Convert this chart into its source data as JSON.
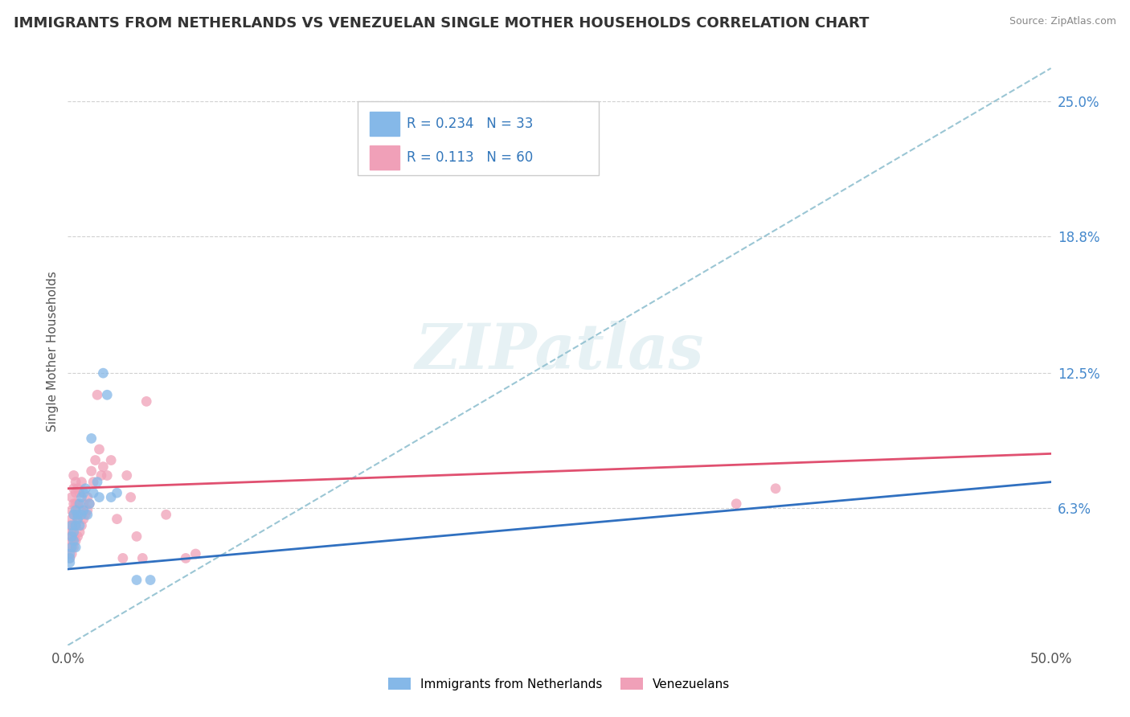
{
  "title": "IMMIGRANTS FROM NETHERLANDS VS VENEZUELAN SINGLE MOTHER HOUSEHOLDS CORRELATION CHART",
  "source": "Source: ZipAtlas.com",
  "ylabel": "Single Mother Households",
  "xlim": [
    0.0,
    0.5
  ],
  "ylim": [
    -0.01,
    0.275
  ],
  "plot_ylim": [
    0.0,
    0.27
  ],
  "right_yticks": [
    0.063,
    0.125,
    0.188,
    0.25
  ],
  "right_yticklabels": [
    "6.3%",
    "12.5%",
    "18.8%",
    "25.0%"
  ],
  "xtick_positions": [
    0.0,
    0.5
  ],
  "xtick_labels": [
    "0.0%",
    "50.0%"
  ],
  "grid_yticks": [
    0.063,
    0.125,
    0.188,
    0.25
  ],
  "watermark": "ZIPatlas",
  "legend_entries": [
    {
      "label": "Immigrants from Netherlands",
      "R": "0.234",
      "N": "33",
      "color": "#a8c8f0"
    },
    {
      "label": "Venezuelans",
      "R": "0.113",
      "N": "60",
      "color": "#f5b8c4"
    }
  ],
  "netherlands_color": "#85b8e8",
  "venezuelan_color": "#f0a0b8",
  "netherlands_line_color": "#3070c0",
  "venezuelan_line_color": "#e05070",
  "ref_line_color": "#90c0d0",
  "background_color": "#ffffff",
  "grid_color": "#cccccc",
  "nl_trend_x0": 0.0,
  "nl_trend_y0": 0.035,
  "nl_trend_x1": 0.5,
  "nl_trend_y1": 0.075,
  "vz_trend_x0": 0.0,
  "vz_trend_y0": 0.072,
  "vz_trend_x1": 0.5,
  "vz_trend_y1": 0.088,
  "ref_trend_x0": 0.0,
  "ref_trend_y0": 0.0,
  "ref_trend_x1": 0.5,
  "ref_trend_y1": 0.265,
  "netherlands_scatter": [
    [
      0.001,
      0.04
    ],
    [
      0.001,
      0.042
    ],
    [
      0.001,
      0.038
    ],
    [
      0.002,
      0.05
    ],
    [
      0.002,
      0.055
    ],
    [
      0.002,
      0.045
    ],
    [
      0.003,
      0.052
    ],
    [
      0.003,
      0.048
    ],
    [
      0.003,
      0.06
    ],
    [
      0.004,
      0.055
    ],
    [
      0.004,
      0.062
    ],
    [
      0.004,
      0.045
    ],
    [
      0.005,
      0.06
    ],
    [
      0.005,
      0.058
    ],
    [
      0.006,
      0.065
    ],
    [
      0.006,
      0.055
    ],
    [
      0.007,
      0.068
    ],
    [
      0.007,
      0.06
    ],
    [
      0.008,
      0.07
    ],
    [
      0.008,
      0.062
    ],
    [
      0.009,
      0.072
    ],
    [
      0.01,
      0.06
    ],
    [
      0.011,
      0.065
    ],
    [
      0.012,
      0.095
    ],
    [
      0.013,
      0.07
    ],
    [
      0.015,
      0.075
    ],
    [
      0.016,
      0.068
    ],
    [
      0.018,
      0.125
    ],
    [
      0.02,
      0.115
    ],
    [
      0.022,
      0.068
    ],
    [
      0.025,
      0.07
    ],
    [
      0.035,
      0.03
    ],
    [
      0.042,
      0.03
    ]
  ],
  "venezuelan_scatter": [
    [
      0.001,
      0.04
    ],
    [
      0.001,
      0.045
    ],
    [
      0.001,
      0.05
    ],
    [
      0.001,
      0.055
    ],
    [
      0.002,
      0.042
    ],
    [
      0.002,
      0.048
    ],
    [
      0.002,
      0.052
    ],
    [
      0.002,
      0.058
    ],
    [
      0.002,
      0.062
    ],
    [
      0.002,
      0.068
    ],
    [
      0.003,
      0.045
    ],
    [
      0.003,
      0.05
    ],
    [
      0.003,
      0.055
    ],
    [
      0.003,
      0.06
    ],
    [
      0.003,
      0.065
    ],
    [
      0.003,
      0.072
    ],
    [
      0.003,
      0.078
    ],
    [
      0.004,
      0.048
    ],
    [
      0.004,
      0.055
    ],
    [
      0.004,
      0.06
    ],
    [
      0.004,
      0.065
    ],
    [
      0.004,
      0.07
    ],
    [
      0.004,
      0.075
    ],
    [
      0.005,
      0.05
    ],
    [
      0.005,
      0.058
    ],
    [
      0.005,
      0.065
    ],
    [
      0.005,
      0.072
    ],
    [
      0.006,
      0.052
    ],
    [
      0.006,
      0.06
    ],
    [
      0.006,
      0.07
    ],
    [
      0.007,
      0.055
    ],
    [
      0.007,
      0.062
    ],
    [
      0.007,
      0.075
    ],
    [
      0.008,
      0.058
    ],
    [
      0.008,
      0.065
    ],
    [
      0.009,
      0.06
    ],
    [
      0.01,
      0.062
    ],
    [
      0.01,
      0.068
    ],
    [
      0.011,
      0.065
    ],
    [
      0.012,
      0.08
    ],
    [
      0.013,
      0.075
    ],
    [
      0.014,
      0.085
    ],
    [
      0.015,
      0.115
    ],
    [
      0.016,
      0.09
    ],
    [
      0.017,
      0.078
    ],
    [
      0.018,
      0.082
    ],
    [
      0.02,
      0.078
    ],
    [
      0.022,
      0.085
    ],
    [
      0.025,
      0.058
    ],
    [
      0.028,
      0.04
    ],
    [
      0.03,
      0.078
    ],
    [
      0.032,
      0.068
    ],
    [
      0.035,
      0.05
    ],
    [
      0.038,
      0.04
    ],
    [
      0.04,
      0.112
    ],
    [
      0.05,
      0.06
    ],
    [
      0.06,
      0.04
    ],
    [
      0.065,
      0.042
    ],
    [
      0.34,
      0.065
    ],
    [
      0.36,
      0.072
    ]
  ]
}
